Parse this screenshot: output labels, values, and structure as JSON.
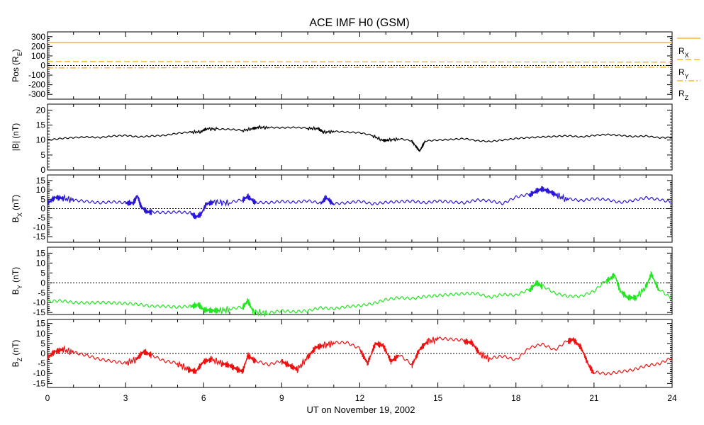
{
  "chart_data": {
    "type": "line",
    "title": "ACE IMF H0 (GSM)",
    "xlabel": "UT on November 19, 2002",
    "xlim": [
      0,
      24
    ],
    "xticks": [
      "0",
      "3",
      "6",
      "9",
      "12",
      "15",
      "18",
      "21",
      "24"
    ],
    "xtick_values": [
      0,
      3,
      6,
      9,
      12,
      15,
      18,
      21,
      24
    ],
    "panels": [
      {
        "id": "pos",
        "ylabel_main": "Pos (R",
        "ylabel_sub": "E",
        "ylabel_tail": ")",
        "ylim": [
          -350,
          350
        ],
        "yticks": [
          "300",
          "200",
          "100",
          "0",
          "-100",
          "-200",
          "-300"
        ],
        "ytick_values": [
          300,
          200,
          100,
          0,
          -100,
          -200,
          -300
        ],
        "zero_line": true,
        "color_rx": "#f0a800",
        "color_ry": "#f0a800",
        "color_rz": "#f0a800",
        "legend": [
          {
            "main": "R",
            "sub": "X"
          },
          {
            "main": "R",
            "sub": "Y"
          },
          {
            "main": "R",
            "sub": "Z"
          }
        ],
        "series": [
          {
            "name": "RX",
            "x": [
              0,
              24
            ],
            "values": [
              240,
              240
            ]
          },
          {
            "name": "RY",
            "x": [
              0,
              24
            ],
            "values": [
              42,
              35
            ]
          },
          {
            "name": "RZ",
            "x": [
              0,
              24
            ],
            "values": [
              -25,
              -18
            ]
          }
        ]
      },
      {
        "id": "bmag",
        "ylabel_main": "|B| (nT)",
        "ylim": [
          0,
          22
        ],
        "yticks": [
          "20",
          "15",
          "10",
          "5",
          "0"
        ],
        "ytick_values": [
          20,
          15,
          10,
          5,
          0
        ],
        "zero_line": false,
        "color": "#000000",
        "series": [
          {
            "x": [
              0,
              0.5,
              1,
              1.5,
              2,
              2.5,
              3,
              3.5,
              4,
              4.5,
              5,
              5.5,
              5.9,
              6.1,
              6.5,
              7,
              7.5,
              7.9,
              8.1,
              8.5,
              9,
              9.5,
              10,
              10.4,
              10.6,
              11,
              11.5,
              12,
              12.5,
              12.9,
              13.1,
              13.5,
              14,
              14.3,
              14.5,
              15,
              15.5,
              16,
              16.5,
              17,
              17.5,
              18,
              18.5,
              19,
              19.5,
              20,
              20.5,
              21,
              21.5,
              22,
              22.5,
              23,
              23.5,
              24
            ],
            "values": [
              10,
              10.5,
              10.8,
              11,
              10.8,
              11.3,
              11.5,
              11,
              11.3,
              11.5,
              12.2,
              12.6,
              12.8,
              13.8,
              13.6,
              13.5,
              13.2,
              13.8,
              14.3,
              14.1,
              14.0,
              14.1,
              13.9,
              13.8,
              12.6,
              12.8,
              12.5,
              12.3,
              11.4,
              9.8,
              10,
              10.3,
              9.6,
              6.3,
              9.5,
              9.8,
              10,
              10.3,
              9.6,
              9.3,
              9.8,
              10.3,
              10.6,
              10.8,
              11,
              11.2,
              10.8,
              11.3,
              11.6,
              11.3,
              10.9,
              11.1,
              10.5,
              10.6
            ]
          }
        ]
      },
      {
        "id": "bx",
        "ylabel_main": "B",
        "ylabel_sub": "X",
        "ylabel_tail": " (nT)",
        "ylim": [
          -18,
          18
        ],
        "yticks": [
          "15",
          "10",
          "5",
          "0",
          "-5",
          "-10",
          "-15"
        ],
        "ytick_values": [
          15,
          10,
          5,
          0,
          -5,
          -10,
          -15
        ],
        "zero_line": true,
        "color": "#2a16d8",
        "series": [
          {
            "x": [
              0,
              0.3,
              0.6,
              1,
              1.5,
              2,
              2.5,
              3,
              3.3,
              3.45,
              3.6,
              3.8,
              4,
              4.5,
              5,
              5.5,
              5.7,
              5.9,
              6.1,
              6.4,
              7,
              7.5,
              7.7,
              8,
              8.5,
              9,
              9.5,
              10,
              10.5,
              10.7,
              11,
              11.5,
              12,
              12.5,
              13,
              13.5,
              14,
              14.5,
              15,
              15.5,
              16,
              16.5,
              17,
              17.5,
              18,
              18.5,
              18.8,
              19,
              19.3,
              19.6,
              20,
              20.5,
              21,
              21.5,
              22,
              22.5,
              23,
              23.5,
              24
            ],
            "values": [
              3,
              6,
              5.5,
              4.5,
              3.8,
              3,
              3.5,
              3,
              3,
              7,
              1,
              -1.5,
              -2,
              -2.3,
              -2,
              -2.5,
              -4.5,
              -3,
              2.5,
              3.5,
              3,
              4.5,
              6.5,
              3,
              2.8,
              3.5,
              3,
              3.8,
              2.5,
              6,
              2.2,
              2.6,
              3.5,
              2,
              2.8,
              3.2,
              3.5,
              2.5,
              3.5,
              3,
              2.4,
              4,
              3.5,
              2,
              5.5,
              7,
              9.5,
              10.5,
              9,
              7,
              4.5,
              3.5,
              4.5,
              4,
              2.5,
              3.5,
              5,
              4,
              2.5
            ]
          }
        ]
      },
      {
        "id": "by",
        "ylabel_main": "B",
        "ylabel_sub": "Y",
        "ylabel_tail": " (nT)",
        "ylim": [
          -16,
          18
        ],
        "yticks": [
          "15",
          "10",
          "5",
          "0",
          "-5",
          "-10",
          "-15"
        ],
        "ytick_values": [
          15,
          10,
          5,
          0,
          -5,
          -10,
          -15
        ],
        "zero_line": true,
        "color": "#22e622",
        "series": [
          {
            "x": [
              0,
              0.5,
              1,
              1.5,
              2,
              2.5,
              3,
              3.5,
              4,
              4.5,
              5,
              5.5,
              5.8,
              6,
              6.3,
              6.6,
              7,
              7.5,
              7.7,
              7.9,
              8.5,
              9,
              9.5,
              10,
              10.5,
              11,
              11.5,
              12,
              12.5,
              13,
              13.5,
              14,
              14.5,
              15,
              15.5,
              16,
              16.5,
              17,
              17.5,
              18,
              18.5,
              18.8,
              19,
              19.5,
              20,
              20.5,
              21,
              21.5,
              21.8,
              22,
              22.3,
              22.6,
              23,
              23.2,
              23.5,
              24
            ],
            "values": [
              -9.5,
              -9,
              -10,
              -10.2,
              -10,
              -10.2,
              -10.5,
              -11,
              -12,
              -12,
              -12.5,
              -12,
              -11,
              -13.5,
              -14,
              -14,
              -13.5,
              -12.5,
              -9,
              -14.5,
              -15.5,
              -14.5,
              -15,
              -14.5,
              -13,
              -13.5,
              -12.5,
              -12,
              -11,
              -9,
              -8,
              -8.5,
              -7.5,
              -7,
              -6.5,
              -6,
              -6,
              -8,
              -6.5,
              -7,
              -4,
              0,
              -2,
              -6,
              -7.5,
              -7.5,
              -5,
              1,
              4,
              -4,
              -7.5,
              -7.5,
              -2,
              4.5,
              -4,
              -9
            ]
          }
        ]
      },
      {
        "id": "bz",
        "ylabel_main": "B",
        "ylabel_sub": "Z",
        "ylabel_tail": " (nT)",
        "ylim": [
          -17,
          17
        ],
        "yticks": [
          "15",
          "10",
          "5",
          "0",
          "-5",
          "-10",
          "-15"
        ],
        "ytick_values": [
          15,
          10,
          5,
          0,
          -5,
          -10,
          -15
        ],
        "zero_line": true,
        "color": "#ee1111",
        "series": [
          {
            "x": [
              0,
              0.3,
              0.6,
              1,
              1.5,
              2,
              2.5,
              3,
              3.4,
              3.7,
              4,
              4.5,
              5,
              5.4,
              5.7,
              6,
              6.3,
              6.7,
              7,
              7.3,
              7.5,
              7.7,
              8,
              8.5,
              9,
              9.3,
              9.6,
              10,
              10.3,
              10.6,
              11,
              11.5,
              12,
              12.3,
              12.6,
              12.9,
              13.2,
              13.5,
              14,
              14.3,
              14.6,
              15,
              15.5,
              16,
              16.3,
              16.6,
              17,
              17.5,
              18,
              18.5,
              19,
              19.5,
              20,
              20.2,
              20.5,
              20.8,
              21,
              21.5,
              22,
              22.5,
              23,
              23.5,
              24
            ],
            "values": [
              -2,
              1,
              2,
              0.5,
              -1,
              -3,
              -4,
              -5,
              -3,
              1,
              -1,
              -4,
              -5,
              -8,
              -9,
              -4,
              -3,
              -5,
              -6,
              -8,
              -9,
              -1,
              -4,
              -6,
              -4,
              -6,
              -8,
              -2,
              3,
              4,
              5,
              5,
              2,
              -5,
              5,
              4,
              -4,
              -1,
              -6,
              2,
              6,
              7,
              6.5,
              6,
              5.5,
              0,
              -3,
              -2,
              -4,
              2,
              4,
              1,
              6,
              7,
              3,
              -6,
              -10,
              -11,
              -10,
              -9,
              -7,
              -6,
              -3
            ]
          }
        ]
      }
    ]
  }
}
